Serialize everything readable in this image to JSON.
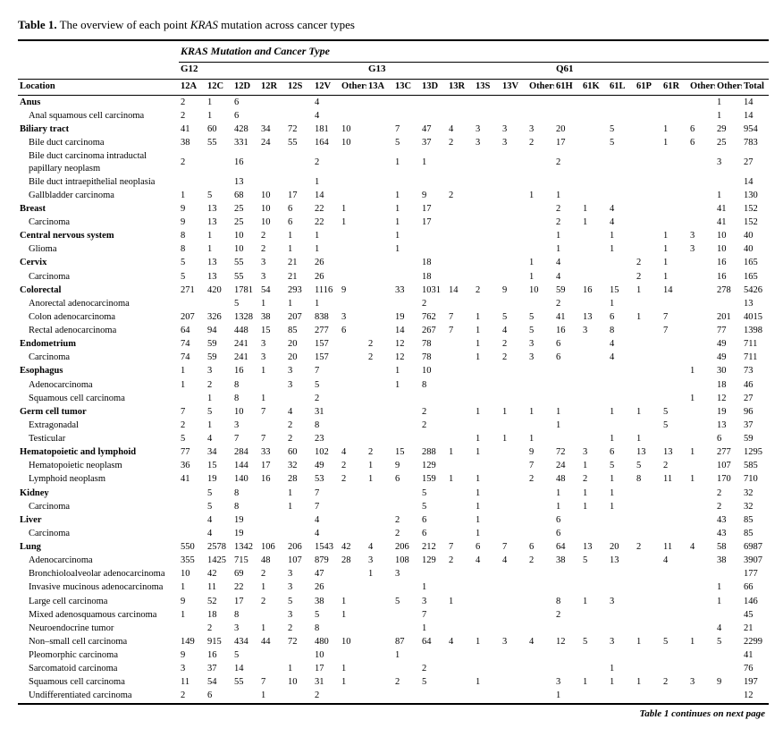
{
  "title_prefix": "Table 1.",
  "title_rest": " The overview of each point ",
  "title_gene": "KRAS",
  "title_end": " mutation across cancer types",
  "super_header": "KRAS Mutation and Cancer Type",
  "groups": {
    "g12": "G12",
    "g13": "G13",
    "q61": "Q61"
  },
  "columns": [
    "Location",
    "12A",
    "12C",
    "12D",
    "12R",
    "12S",
    "12V",
    "Others",
    "13A",
    "13C",
    "13D",
    "13R",
    "13S",
    "13V",
    "Others",
    "61H",
    "61K",
    "61L",
    "61P",
    "61R",
    "Others",
    "Others",
    "Total"
  ],
  "continues": "Table 1 continues on next page",
  "rows": [
    {
      "t": "section",
      "l": "Anus",
      "v": [
        "2",
        "1",
        "6",
        "",
        "",
        "4",
        "",
        "",
        "",
        "",
        "",
        "",
        "",
        "",
        "",
        "",
        "",
        "",
        "",
        "",
        "1",
        "14"
      ]
    },
    {
      "t": "sub",
      "l": "Anal squamous cell carcinoma",
      "v": [
        "2",
        "1",
        "6",
        "",
        "",
        "4",
        "",
        "",
        "",
        "",
        "",
        "",
        "",
        "",
        "",
        "",
        "",
        "",
        "",
        "",
        "1",
        "14"
      ]
    },
    {
      "t": "section",
      "l": "Biliary tract",
      "v": [
        "41",
        "60",
        "428",
        "34",
        "72",
        "181",
        "10",
        "",
        "7",
        "47",
        "4",
        "3",
        "3",
        "3",
        "20",
        "",
        "5",
        "",
        "1",
        "6",
        "29",
        "954"
      ]
    },
    {
      "t": "sub",
      "l": "Bile duct carcinoma",
      "v": [
        "38",
        "55",
        "331",
        "24",
        "55",
        "164",
        "10",
        "",
        "5",
        "37",
        "2",
        "3",
        "3",
        "2",
        "17",
        "",
        "5",
        "",
        "1",
        "6",
        "25",
        "783"
      ]
    },
    {
      "t": "sub",
      "l": "Bile duct carcinoma intraductal papillary neoplasm",
      "v": [
        "2",
        "",
        "16",
        "",
        "",
        "2",
        "",
        "",
        "1",
        "1",
        "",
        "",
        "",
        "",
        "2",
        "",
        "",
        "",
        "",
        "",
        "3",
        "27"
      ]
    },
    {
      "t": "sub",
      "l": "Bile duct intraepithelial neoplasia",
      "v": [
        "",
        "",
        "13",
        "",
        "",
        "1",
        "",
        "",
        "",
        "",
        "",
        "",
        "",
        "",
        "",
        "",
        "",
        "",
        "",
        "",
        "",
        "14"
      ]
    },
    {
      "t": "sub",
      "l": "Gallbladder carcinoma",
      "v": [
        "1",
        "5",
        "68",
        "10",
        "17",
        "14",
        "",
        "",
        "1",
        "9",
        "2",
        "",
        "",
        "1",
        "1",
        "",
        "",
        "",
        "",
        "",
        "1",
        "130"
      ]
    },
    {
      "t": "section",
      "l": "Breast",
      "v": [
        "9",
        "13",
        "25",
        "10",
        "6",
        "22",
        "1",
        "",
        "1",
        "17",
        "",
        "",
        "",
        "",
        "2",
        "1",
        "4",
        "",
        "",
        "",
        "41",
        "152"
      ]
    },
    {
      "t": "sub",
      "l": "Carcinoma",
      "v": [
        "9",
        "13",
        "25",
        "10",
        "6",
        "22",
        "1",
        "",
        "1",
        "17",
        "",
        "",
        "",
        "",
        "2",
        "1",
        "4",
        "",
        "",
        "",
        "41",
        "152"
      ]
    },
    {
      "t": "section",
      "l": "Central nervous system",
      "v": [
        "8",
        "1",
        "10",
        "2",
        "1",
        "1",
        "",
        "",
        "1",
        "",
        "",
        "",
        "",
        "",
        "1",
        "",
        "1",
        "",
        "1",
        "3",
        "10",
        "40"
      ]
    },
    {
      "t": "sub",
      "l": "Glioma",
      "v": [
        "8",
        "1",
        "10",
        "2",
        "1",
        "1",
        "",
        "",
        "1",
        "",
        "",
        "",
        "",
        "",
        "1",
        "",
        "1",
        "",
        "1",
        "3",
        "10",
        "40"
      ]
    },
    {
      "t": "section",
      "l": "Cervix",
      "v": [
        "5",
        "13",
        "55",
        "3",
        "21",
        "26",
        "",
        "",
        "",
        "18",
        "",
        "",
        "",
        "1",
        "4",
        "",
        "",
        "2",
        "1",
        "",
        "16",
        "165"
      ]
    },
    {
      "t": "sub",
      "l": "Carcinoma",
      "v": [
        "5",
        "13",
        "55",
        "3",
        "21",
        "26",
        "",
        "",
        "",
        "18",
        "",
        "",
        "",
        "1",
        "4",
        "",
        "",
        "2",
        "1",
        "",
        "16",
        "165"
      ]
    },
    {
      "t": "section",
      "l": "Colorectal",
      "v": [
        "271",
        "420",
        "1781",
        "54",
        "293",
        "1116",
        "9",
        "",
        "33",
        "1031",
        "14",
        "2",
        "9",
        "10",
        "59",
        "16",
        "15",
        "1",
        "14",
        "",
        "278",
        "5426"
      ]
    },
    {
      "t": "sub",
      "l": "Anorectal adenocarcinoma",
      "v": [
        "",
        "",
        "5",
        "1",
        "1",
        "1",
        "",
        "",
        "",
        "2",
        "",
        "",
        "",
        "",
        "2",
        "",
        "1",
        "",
        "",
        "",
        "",
        "13"
      ]
    },
    {
      "t": "sub",
      "l": "Colon adenocarcinoma",
      "v": [
        "207",
        "326",
        "1328",
        "38",
        "207",
        "838",
        "3",
        "",
        "19",
        "762",
        "7",
        "1",
        "5",
        "5",
        "41",
        "13",
        "6",
        "1",
        "7",
        "",
        "201",
        "4015"
      ]
    },
    {
      "t": "sub",
      "l": "Rectal adenocarcinoma",
      "v": [
        "64",
        "94",
        "448",
        "15",
        "85",
        "277",
        "6",
        "",
        "14",
        "267",
        "7",
        "1",
        "4",
        "5",
        "16",
        "3",
        "8",
        "",
        "7",
        "",
        "77",
        "1398"
      ]
    },
    {
      "t": "section",
      "l": "Endometrium",
      "v": [
        "74",
        "59",
        "241",
        "3",
        "20",
        "157",
        "",
        "2",
        "12",
        "78",
        "",
        "1",
        "2",
        "3",
        "6",
        "",
        "4",
        "",
        "",
        "",
        "49",
        "711"
      ]
    },
    {
      "t": "sub",
      "l": "Carcinoma",
      "v": [
        "74",
        "59",
        "241",
        "3",
        "20",
        "157",
        "",
        "2",
        "12",
        "78",
        "",
        "1",
        "2",
        "3",
        "6",
        "",
        "4",
        "",
        "",
        "",
        "49",
        "711"
      ]
    },
    {
      "t": "section",
      "l": "Esophagus",
      "v": [
        "1",
        "3",
        "16",
        "1",
        "3",
        "7",
        "",
        "",
        "1",
        "10",
        "",
        "",
        "",
        "",
        "",
        "",
        "",
        "",
        "",
        "1",
        "30",
        "73"
      ]
    },
    {
      "t": "sub",
      "l": "Adenocarcinoma",
      "v": [
        "1",
        "2",
        "8",
        "",
        "3",
        "5",
        "",
        "",
        "1",
        "8",
        "",
        "",
        "",
        "",
        "",
        "",
        "",
        "",
        "",
        "",
        "18",
        "46"
      ]
    },
    {
      "t": "sub",
      "l": "Squamous cell carcinoma",
      "v": [
        "",
        "1",
        "8",
        "1",
        "",
        "2",
        "",
        "",
        "",
        "",
        "",
        "",
        "",
        "",
        "",
        "",
        "",
        "",
        "",
        "1",
        "12",
        "27"
      ]
    },
    {
      "t": "section",
      "l": "Germ cell tumor",
      "v": [
        "7",
        "5",
        "10",
        "7",
        "4",
        "31",
        "",
        "",
        "",
        "2",
        "",
        "1",
        "1",
        "1",
        "1",
        "",
        "1",
        "1",
        "5",
        "",
        "19",
        "96"
      ]
    },
    {
      "t": "sub",
      "l": "Extragonadal",
      "v": [
        "2",
        "1",
        "3",
        "",
        "2",
        "8",
        "",
        "",
        "",
        "2",
        "",
        "",
        "",
        "",
        "1",
        "",
        "",
        "",
        "5",
        "",
        "13",
        "37"
      ]
    },
    {
      "t": "sub",
      "l": "Testicular",
      "v": [
        "5",
        "4",
        "7",
        "7",
        "2",
        "23",
        "",
        "",
        "",
        "",
        "",
        "1",
        "1",
        "1",
        "",
        "",
        "1",
        "1",
        "",
        "",
        "6",
        "59"
      ]
    },
    {
      "t": "section",
      "l": "Hematopoietic and lymphoid",
      "v": [
        "77",
        "34",
        "284",
        "33",
        "60",
        "102",
        "4",
        "2",
        "15",
        "288",
        "1",
        "1",
        "",
        "9",
        "72",
        "3",
        "6",
        "13",
        "13",
        "1",
        "277",
        "1295"
      ]
    },
    {
      "t": "sub",
      "l": "Hematopoietic neoplasm",
      "v": [
        "36",
        "15",
        "144",
        "17",
        "32",
        "49",
        "2",
        "1",
        "9",
        "129",
        "",
        "",
        "",
        "7",
        "24",
        "1",
        "5",
        "5",
        "2",
        "",
        "107",
        "585"
      ]
    },
    {
      "t": "sub",
      "l": "Lymphoid neoplasm",
      "v": [
        "41",
        "19",
        "140",
        "16",
        "28",
        "53",
        "2",
        "1",
        "6",
        "159",
        "1",
        "1",
        "",
        "2",
        "48",
        "2",
        "1",
        "8",
        "11",
        "1",
        "170",
        "710"
      ]
    },
    {
      "t": "section",
      "l": "Kidney",
      "v": [
        "",
        "5",
        "8",
        "",
        "1",
        "7",
        "",
        "",
        "",
        "5",
        "",
        "1",
        "",
        "",
        "1",
        "1",
        "1",
        "",
        "",
        "",
        "2",
        "32"
      ]
    },
    {
      "t": "sub",
      "l": "Carcinoma",
      "v": [
        "",
        "5",
        "8",
        "",
        "1",
        "7",
        "",
        "",
        "",
        "5",
        "",
        "1",
        "",
        "",
        "1",
        "1",
        "1",
        "",
        "",
        "",
        "2",
        "32"
      ]
    },
    {
      "t": "section",
      "l": "Liver",
      "v": [
        "",
        "4",
        "19",
        "",
        "",
        "4",
        "",
        "",
        "2",
        "6",
        "",
        "1",
        "",
        "",
        "6",
        "",
        "",
        "",
        "",
        "",
        "43",
        "85"
      ]
    },
    {
      "t": "sub",
      "l": "Carcinoma",
      "v": [
        "",
        "4",
        "19",
        "",
        "",
        "4",
        "",
        "",
        "2",
        "6",
        "",
        "1",
        "",
        "",
        "6",
        "",
        "",
        "",
        "",
        "",
        "43",
        "85"
      ]
    },
    {
      "t": "section",
      "l": "Lung",
      "v": [
        "550",
        "2578",
        "1342",
        "106",
        "206",
        "1543",
        "42",
        "4",
        "206",
        "212",
        "7",
        "6",
        "7",
        "6",
        "64",
        "13",
        "20",
        "2",
        "11",
        "4",
        "58",
        "6987"
      ]
    },
    {
      "t": "sub",
      "l": "Adenocarcinoma",
      "v": [
        "355",
        "1425",
        "715",
        "48",
        "107",
        "879",
        "28",
        "3",
        "108",
        "129",
        "2",
        "4",
        "4",
        "2",
        "38",
        "5",
        "13",
        "",
        "4",
        "",
        "38",
        "3907"
      ]
    },
    {
      "t": "sub",
      "l": "Bronchioloalveolar adenocarcinoma",
      "v": [
        "10",
        "42",
        "69",
        "2",
        "3",
        "47",
        "",
        "1",
        "3",
        "",
        "",
        "",
        "",
        "",
        "",
        "",
        "",
        "",
        "",
        "",
        "",
        "177"
      ]
    },
    {
      "t": "sub",
      "l": "Invasive mucinous adenocarcinoma",
      "v": [
        "1",
        "11",
        "22",
        "1",
        "3",
        "26",
        "",
        "",
        "",
        "1",
        "",
        "",
        "",
        "",
        "",
        "",
        "",
        "",
        "",
        "",
        "1",
        "66"
      ]
    },
    {
      "t": "sub",
      "l": "Large cell carcinoma",
      "v": [
        "9",
        "52",
        "17",
        "2",
        "5",
        "38",
        "1",
        "",
        "5",
        "3",
        "1",
        "",
        "",
        "",
        "8",
        "1",
        "3",
        "",
        "",
        "",
        "1",
        "146"
      ]
    },
    {
      "t": "sub",
      "l": "Mixed adenosquamous carcinoma",
      "v": [
        "1",
        "18",
        "8",
        "",
        "3",
        "5",
        "1",
        "",
        "",
        "7",
        "",
        "",
        "",
        "",
        "2",
        "",
        "",
        "",
        "",
        "",
        "",
        "45"
      ]
    },
    {
      "t": "sub",
      "l": "Neuroendocrine tumor",
      "v": [
        "",
        "2",
        "3",
        "1",
        "2",
        "8",
        "",
        "",
        "",
        "1",
        "",
        "",
        "",
        "",
        "",
        "",
        "",
        "",
        "",
        "",
        "4",
        "21"
      ]
    },
    {
      "t": "sub",
      "l": "Non–small cell carcinoma",
      "v": [
        "149",
        "915",
        "434",
        "44",
        "72",
        "480",
        "10",
        "",
        "87",
        "64",
        "4",
        "1",
        "3",
        "4",
        "12",
        "5",
        "3",
        "1",
        "5",
        "1",
        "5",
        "2299"
      ]
    },
    {
      "t": "sub",
      "l": "Pleomorphic carcinoma",
      "v": [
        "9",
        "16",
        "5",
        "",
        "",
        "10",
        "",
        "",
        "1",
        "",
        "",
        "",
        "",
        "",
        "",
        "",
        "",
        "",
        "",
        "",
        "",
        "41"
      ]
    },
    {
      "t": "sub",
      "l": "Sarcomatoid carcinoma",
      "v": [
        "3",
        "37",
        "14",
        "",
        "1",
        "17",
        "1",
        "",
        "",
        "2",
        "",
        "",
        "",
        "",
        "",
        "",
        "1",
        "",
        "",
        "",
        "",
        "76"
      ]
    },
    {
      "t": "sub",
      "l": "Squamous cell carcinoma",
      "v": [
        "11",
        "54",
        "55",
        "7",
        "10",
        "31",
        "1",
        "",
        "2",
        "5",
        "",
        "1",
        "",
        "",
        "3",
        "1",
        "1",
        "1",
        "2",
        "3",
        "9",
        "197"
      ]
    },
    {
      "t": "sub",
      "l": "Undifferentiated carcinoma",
      "v": [
        "2",
        "6",
        "",
        "1",
        "",
        "2",
        "",
        "",
        "",
        "",
        "",
        "",
        "",
        "",
        "1",
        "",
        "",
        "",
        "",
        "",
        "",
        "12"
      ]
    }
  ]
}
